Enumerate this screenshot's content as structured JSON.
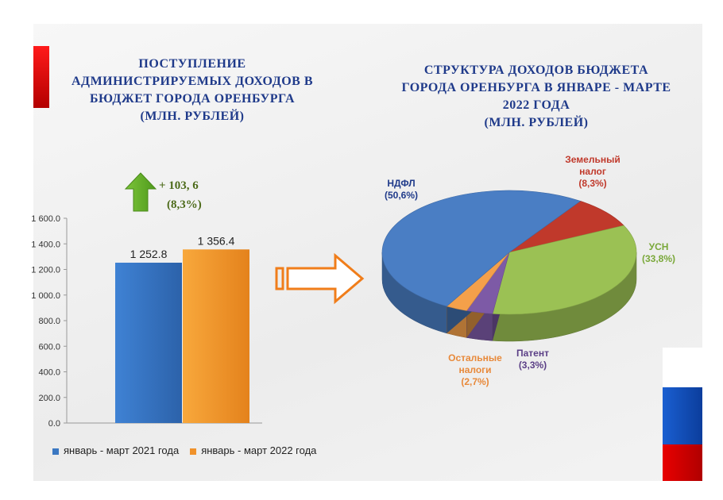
{
  "colors": {
    "blue": "#4a7ec4",
    "orange": "#f59a2e",
    "green": "#9bc154",
    "red": "#c0392b",
    "purple": "#7d5aa6",
    "light_orange": "#f4a04a"
  },
  "left_title": [
    "ПОСТУПЛЕНИЕ",
    "АДМИНИСТРИРУЕМЫХ ДОХОДОВ В",
    "БЮДЖЕТ ГОРОДА ОРЕНБУРГА",
    "(МЛН. РУБЛЕЙ)"
  ],
  "right_title": [
    "СТРУКТУРА ДОХОДОВ  БЮДЖЕТА",
    "ГОРОДА ОРЕНБУРГА В ЯНВАРЕ - МАРТЕ",
    "2022 ГОДА",
    "(МЛН. РУБЛЕЙ)"
  ],
  "growth": {
    "value": "+ 103, 6",
    "percent": "(8,3%)"
  },
  "legend": [
    {
      "label": "январь - март 2021 года",
      "color": "#3b78c2"
    },
    {
      "label": "январь - март 2022 года",
      "color": "#f0922b"
    }
  ],
  "chart_data": [
    {
      "type": "bar",
      "categories": [
        "январь - март 2021 года",
        "январь - март 2022 года"
      ],
      "values": [
        1252.8,
        1356.4
      ],
      "value_labels": [
        "1 252.8",
        "1 356.4"
      ],
      "ylim": [
        0,
        1600
      ],
      "yticks": [
        0,
        200,
        400,
        600,
        800,
        1000,
        1200,
        1400,
        1600
      ],
      "ytick_labels": [
        "0.0",
        "200.0",
        "400.0",
        "600.0",
        "800.0",
        "1 000.0",
        "1 200.0",
        "1 400.0",
        "1 600.0"
      ]
    },
    {
      "type": "pie",
      "slices": [
        {
          "label": "НДФЛ",
          "value": 50.6,
          "pct_label": "(50,6%)",
          "color": "#4a7ec4",
          "label_color": "#1f3a8a"
        },
        {
          "label": "Земельный налог",
          "value": 8.3,
          "pct_label": "(8,3%)",
          "color": "#c0392b",
          "label_color": "#c0392b"
        },
        {
          "label": "УСН",
          "value": 33.8,
          "pct_label": "(33,8%)",
          "color": "#9bc154",
          "label_color": "#7aa83a"
        },
        {
          "label": "Патент",
          "value": 3.3,
          "pct_label": "(3,3%)",
          "color": "#7d5aa6",
          "label_color": "#5b3f86"
        },
        {
          "label": "Остальные налоги",
          "value": 2.7,
          "pct_label": "(2,7%)",
          "color": "#f4a04a",
          "label_color": "#e8893a"
        }
      ]
    }
  ]
}
